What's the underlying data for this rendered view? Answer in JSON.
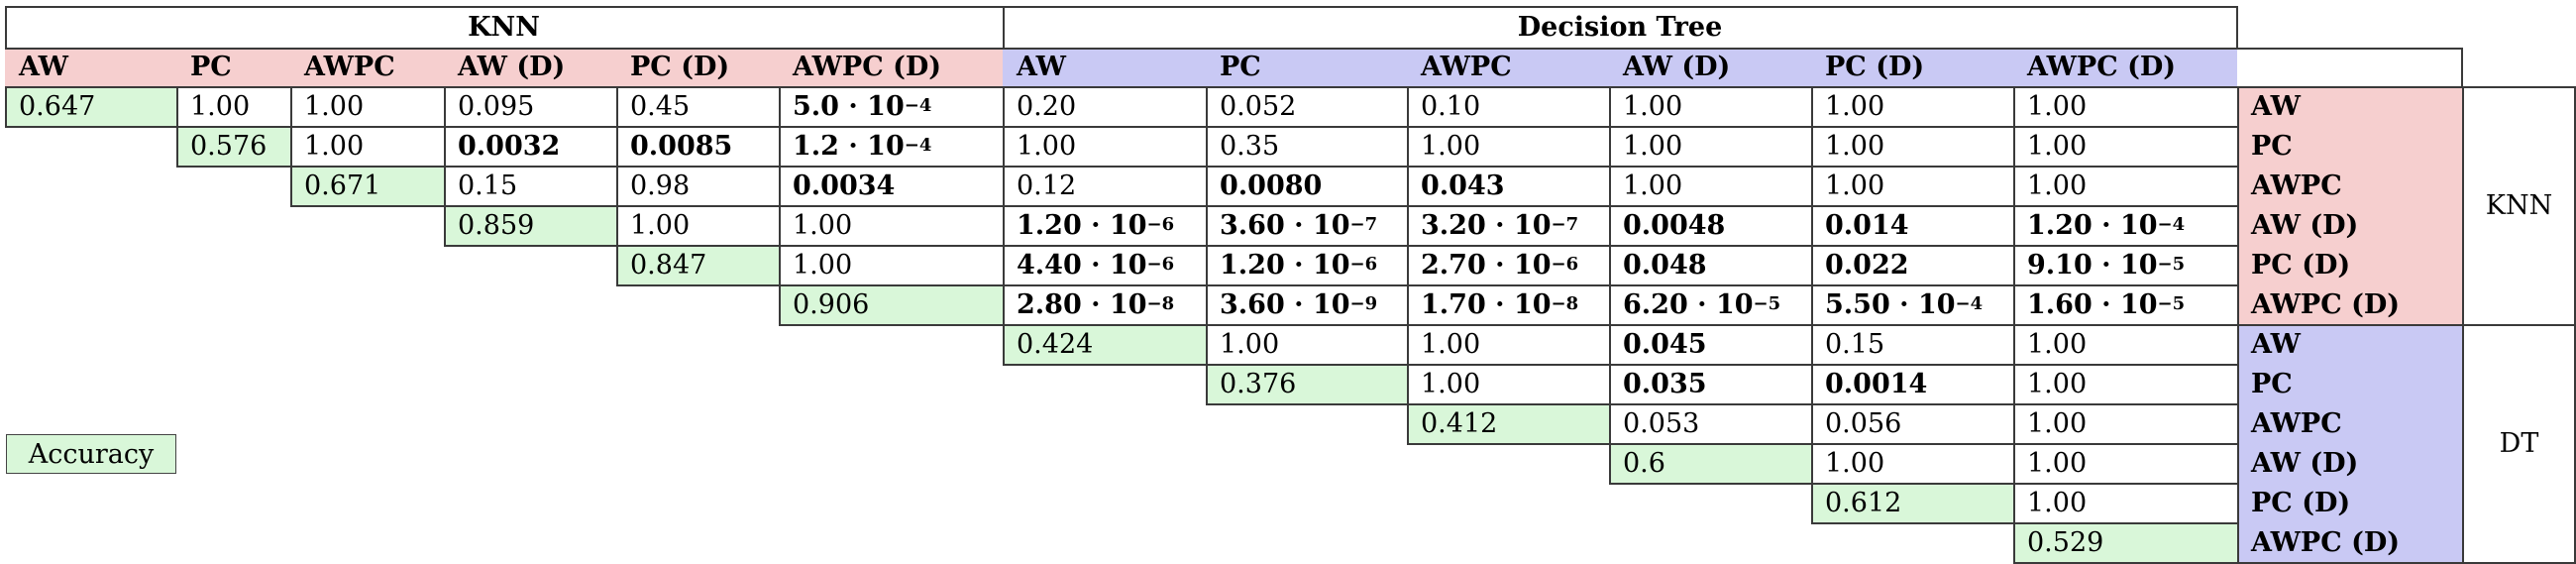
{
  "groups": [
    {
      "label": "KNN"
    },
    {
      "label": "Decision Tree"
    }
  ],
  "row_groups": [
    {
      "label": "KNN"
    },
    {
      "label": "DT"
    }
  ],
  "column_headers": [
    "AW",
    "PC",
    "AWPC",
    "AW (D)",
    "PC (D)",
    "AWPC (D)",
    "AW",
    "PC",
    "AWPC",
    "AW (D)",
    "PC (D)",
    "AWPC (D)"
  ],
  "row_headers": [
    "AW",
    "PC",
    "AWPC",
    "AW (D)",
    "PC (D)",
    "AWPC (D)",
    "AW",
    "PC",
    "AWPC",
    "AW (D)",
    "PC (D)",
    "AWPC (D)"
  ],
  "accuracy": [
    "0.647",
    "0.576",
    "0.671",
    "0.859",
    "0.847",
    "0.906",
    "0.424",
    "0.376",
    "0.412",
    "0.6",
    "0.612",
    "0.529"
  ],
  "legend": {
    "label": "Accuracy"
  },
  "colors": {
    "knn": "#f6cfcf",
    "dt": "#c9c9f4",
    "accuracy": "#d9f7d9",
    "rule": "#3a3a3a"
  },
  "rows": [
    [
      {
        "v": "1.00"
      },
      {
        "v": "1.00"
      },
      {
        "v": "0.095"
      },
      {
        "v": "0.45"
      },
      {
        "v": "5.0 · 10",
        "e": "−4",
        "b": true
      },
      {
        "v": "0.20"
      },
      {
        "v": "0.052"
      },
      {
        "v": "0.10"
      },
      {
        "v": "1.00"
      },
      {
        "v": "1.00"
      },
      {
        "v": "1.00"
      }
    ],
    [
      {
        "v": "1.00"
      },
      {
        "v": "0.0032",
        "b": true
      },
      {
        "v": "0.0085",
        "b": true
      },
      {
        "v": "1.2 · 10",
        "e": "−4",
        "b": true
      },
      {
        "v": "1.00"
      },
      {
        "v": "0.35"
      },
      {
        "v": "1.00"
      },
      {
        "v": "1.00"
      },
      {
        "v": "1.00"
      },
      {
        "v": "1.00"
      }
    ],
    [
      {
        "v": "0.15"
      },
      {
        "v": "0.98"
      },
      {
        "v": "0.0034",
        "b": true
      },
      {
        "v": "0.12"
      },
      {
        "v": "0.0080",
        "b": true
      },
      {
        "v": "0.043",
        "b": true
      },
      {
        "v": "1.00"
      },
      {
        "v": "1.00"
      },
      {
        "v": "1.00"
      }
    ],
    [
      {
        "v": "1.00"
      },
      {
        "v": "1.00"
      },
      {
        "v": "1.20 · 10",
        "e": "−6",
        "b": true
      },
      {
        "v": "3.60 · 10",
        "e": "−7",
        "b": true
      },
      {
        "v": "3.20 · 10",
        "e": "−7",
        "b": true
      },
      {
        "v": "0.0048",
        "b": true
      },
      {
        "v": "0.014",
        "b": true
      },
      {
        "v": "1.20 · 10",
        "e": "−4",
        "b": true
      }
    ],
    [
      {
        "v": "1.00"
      },
      {
        "v": "4.40 · 10",
        "e": "−6",
        "b": true
      },
      {
        "v": "1.20 · 10",
        "e": "−6",
        "b": true
      },
      {
        "v": "2.70 · 10",
        "e": "−6",
        "b": true
      },
      {
        "v": "0.048",
        "b": true
      },
      {
        "v": "0.022",
        "b": true
      },
      {
        "v": "9.10 · 10",
        "e": "−5",
        "b": true
      }
    ],
    [
      {
        "v": "2.80 · 10",
        "e": "−8",
        "b": true
      },
      {
        "v": "3.60 · 10",
        "e": "−9",
        "b": true
      },
      {
        "v": "1.70 · 10",
        "e": "−8",
        "b": true
      },
      {
        "v": "6.20 · 10",
        "e": "−5",
        "b": true
      },
      {
        "v": "5.50 · 10",
        "e": "−4",
        "b": true
      },
      {
        "v": "1.60 · 10",
        "e": "−5",
        "b": true
      }
    ],
    [
      {
        "v": "1.00"
      },
      {
        "v": "1.00"
      },
      {
        "v": "0.045",
        "b": true
      },
      {
        "v": "0.15"
      },
      {
        "v": "1.00"
      }
    ],
    [
      {
        "v": "1.00"
      },
      {
        "v": "0.035",
        "b": true
      },
      {
        "v": "0.0014",
        "b": true
      },
      {
        "v": "1.00"
      }
    ],
    [
      {
        "v": "0.053"
      },
      {
        "v": "0.056"
      },
      {
        "v": "1.00"
      }
    ],
    [
      {
        "v": "1.00"
      },
      {
        "v": "1.00"
      }
    ],
    [
      {
        "v": "1.00"
      }
    ],
    []
  ]
}
